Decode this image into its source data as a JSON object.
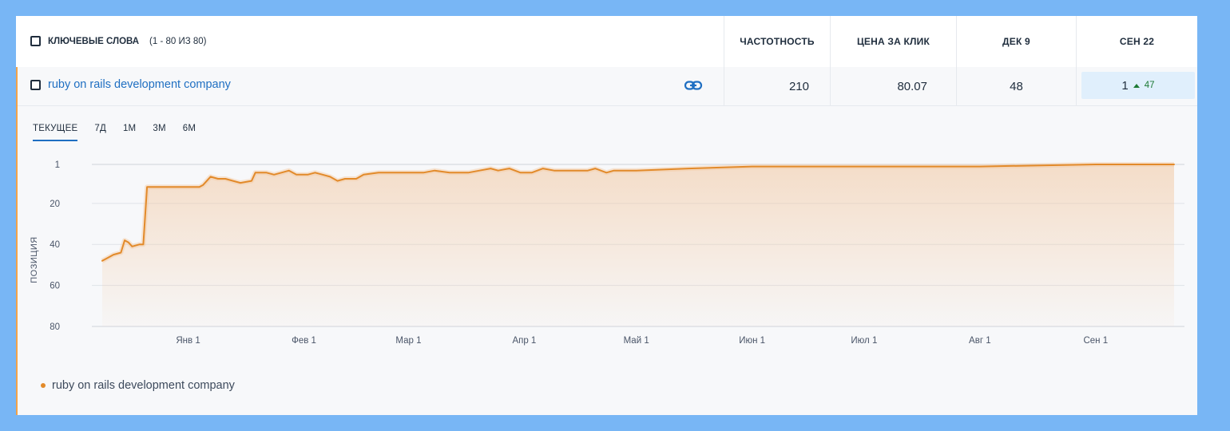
{
  "header": {
    "keywords_label": "КЛЮЧЕВЫЕ СЛОВА",
    "keywords_count": "(1 - 80 ИЗ 80)",
    "frequency": "ЧАСТОТНОСТЬ",
    "cpc": "ЦЕНА ЗА КЛИК",
    "date1": "ДЕК 9",
    "date2": "СЕН 22"
  },
  "keyword_row": {
    "keyword": "ruby on rails development company",
    "frequency": "210",
    "cpc": "80.07",
    "pos_date1": "48",
    "pos_date2": "1",
    "change": "47"
  },
  "tabs": [
    "ТЕКУЩЕЕ",
    "7Д",
    "1М",
    "3М",
    "6М"
  ],
  "active_tab": "ТЕКУЩЕЕ",
  "icons": {
    "link": "link-icon",
    "checkbox": "checkbox-icon",
    "trend": "arrow-up-icon"
  },
  "colors": {
    "line": "#e28a2a",
    "link": "#1f6fc2",
    "positive": "#1d7a34",
    "highlight": "#e0effc"
  },
  "legend": {
    "label": "ruby on rails development company"
  },
  "chart_data": {
    "type": "line",
    "title": "",
    "xlabel": "",
    "ylabel": "ПОЗИЦИЯ",
    "y_reversed": true,
    "ylim": [
      1,
      80
    ],
    "y_ticks": [
      1,
      20,
      40,
      60,
      80
    ],
    "x_ticks": [
      "Янв 1",
      "Фев 1",
      "Мар 1",
      "Апр 1",
      "Май 1",
      "Июн 1",
      "Июл 1",
      "Авг 1",
      "Сен 1"
    ],
    "xlim": [
      "2022-12-09",
      "2023-09-22"
    ],
    "grid": true,
    "series": [
      {
        "name": "ruby on rails development company",
        "points": [
          [
            "2022-12-09",
            48
          ],
          [
            "2022-12-10",
            47
          ],
          [
            "2022-12-12",
            45
          ],
          [
            "2022-12-14",
            44
          ],
          [
            "2022-12-15",
            38
          ],
          [
            "2022-12-16",
            39
          ],
          [
            "2022-12-17",
            41
          ],
          [
            "2022-12-19",
            40
          ],
          [
            "2022-12-20",
            40
          ],
          [
            "2022-12-21",
            12
          ],
          [
            "2022-12-28",
            12
          ],
          [
            "2023-01-04",
            12
          ],
          [
            "2023-01-05",
            11
          ],
          [
            "2023-01-07",
            7
          ],
          [
            "2023-01-09",
            8
          ],
          [
            "2023-01-11",
            8
          ],
          [
            "2023-01-13",
            9
          ],
          [
            "2023-01-15",
            10
          ],
          [
            "2023-01-18",
            9
          ],
          [
            "2023-01-19",
            5
          ],
          [
            "2023-01-22",
            5
          ],
          [
            "2023-01-24",
            6
          ],
          [
            "2023-01-26",
            5
          ],
          [
            "2023-01-28",
            4
          ],
          [
            "2023-01-30",
            6
          ],
          [
            "2023-02-02",
            6
          ],
          [
            "2023-02-04",
            5
          ],
          [
            "2023-02-06",
            6
          ],
          [
            "2023-02-08",
            7
          ],
          [
            "2023-02-10",
            9
          ],
          [
            "2023-02-12",
            8
          ],
          [
            "2023-02-15",
            8
          ],
          [
            "2023-02-17",
            6
          ],
          [
            "2023-02-21",
            5
          ],
          [
            "2023-02-24",
            5
          ],
          [
            "2023-02-27",
            5
          ],
          [
            "2023-03-01",
            5
          ],
          [
            "2023-03-05",
            5
          ],
          [
            "2023-03-08",
            4
          ],
          [
            "2023-03-12",
            5
          ],
          [
            "2023-03-17",
            5
          ],
          [
            "2023-03-20",
            4
          ],
          [
            "2023-03-23",
            3
          ],
          [
            "2023-03-25",
            4
          ],
          [
            "2023-03-28",
            3
          ],
          [
            "2023-03-31",
            5
          ],
          [
            "2023-04-03",
            5
          ],
          [
            "2023-04-06",
            3
          ],
          [
            "2023-04-09",
            4
          ],
          [
            "2023-04-13",
            4
          ],
          [
            "2023-04-18",
            4
          ],
          [
            "2023-04-20",
            3
          ],
          [
            "2023-04-23",
            5
          ],
          [
            "2023-04-25",
            4
          ],
          [
            "2023-05-01",
            4
          ],
          [
            "2023-05-15",
            3
          ],
          [
            "2023-06-01",
            2
          ],
          [
            "2023-07-01",
            2
          ],
          [
            "2023-08-01",
            2
          ],
          [
            "2023-09-01",
            1
          ],
          [
            "2023-09-22",
            1
          ]
        ]
      }
    ]
  }
}
